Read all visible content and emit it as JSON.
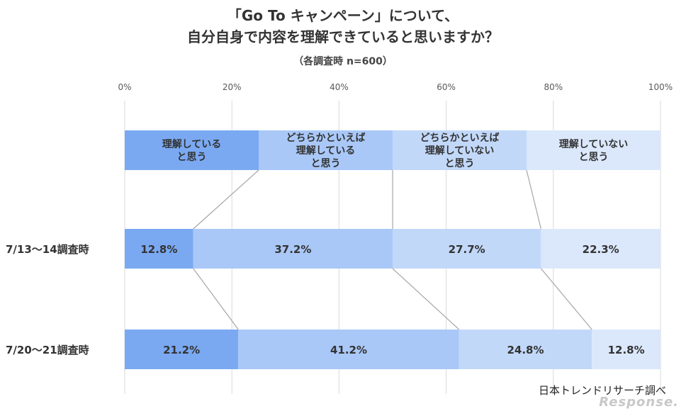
{
  "title_line1": "「Go To キャンペーン」について、",
  "title_line2": "自分自身で内容を理解できていると思いますか？",
  "subtitle": "（各調査時 n=600）",
  "source": "日本トレンドリサーチ調べ",
  "watermark": "Response.",
  "chart_data": {
    "type": "bar",
    "orientation": "horizontal",
    "stacked": "100%",
    "xlim": [
      0,
      100
    ],
    "x_ticks": [
      "0%",
      "20%",
      "40%",
      "60%",
      "80%",
      "100%"
    ],
    "grid": true,
    "legend_placement": "top",
    "legend": [
      {
        "label": "理解している\nと思う",
        "color": "#7aa9f2"
      },
      {
        "label": "どちらかといえば\n理解している\nと思う",
        "color": "#a9c8f7"
      },
      {
        "label": "どちらかといえば\n理解していない\nと思う",
        "color": "#c2d8f9"
      },
      {
        "label": "理解していない\nと思う",
        "color": "#dbe8fc"
      }
    ],
    "categories": [
      "7/13〜14調査時",
      "7/20〜21調査時"
    ],
    "series": [
      {
        "values": [
          12.8,
          21.2
        ],
        "labels": [
          "12.8%",
          "21.2%"
        ]
      },
      {
        "values": [
          37.2,
          41.2
        ],
        "labels": [
          "37.2%",
          "41.2%"
        ]
      },
      {
        "values": [
          27.7,
          24.8
        ],
        "labels": [
          "27.7%",
          "24.8%"
        ]
      },
      {
        "values": [
          22.3,
          12.8
        ],
        "labels": [
          "22.3%",
          "12.8%"
        ]
      }
    ]
  }
}
